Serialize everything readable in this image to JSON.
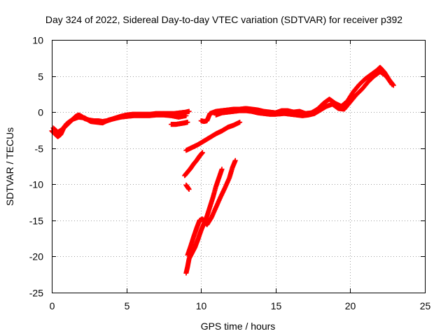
{
  "chart_data": {
    "type": "scatter",
    "title": "Day 324 of 2022, Sidereal Day-to-day VTEC variation (SDTVAR) for receiver p392",
    "xlabel": "GPS time / hours",
    "ylabel": "SDTVAR / TECUs",
    "xlim": [
      0,
      25
    ],
    "ylim": [
      -25,
      10
    ],
    "xticks": [
      0,
      5,
      10,
      15,
      20,
      25
    ],
    "yticks": [
      -25,
      -20,
      -15,
      -10,
      -5,
      0,
      5,
      10
    ],
    "grid": true,
    "legend": "none",
    "marker": "plus",
    "color": "#ff0000",
    "series": [
      {
        "values": [
          [
            0.0,
            -2.6
          ],
          [
            0.2,
            -3.0
          ],
          [
            0.4,
            -3.4
          ],
          [
            0.6,
            -3.1
          ],
          [
            0.8,
            -2.2
          ],
          [
            1.0,
            -1.8
          ],
          [
            1.2,
            -1.4
          ],
          [
            1.4,
            -1.0
          ],
          [
            1.6,
            -0.6
          ],
          [
            1.8,
            -0.4
          ],
          [
            2.0,
            -0.6
          ],
          [
            2.2,
            -0.9
          ],
          [
            2.5,
            -1.1
          ],
          [
            2.8,
            -1.2
          ],
          [
            3.1,
            -1.2
          ],
          [
            3.4,
            -1.3
          ],
          [
            3.7,
            -1.2
          ],
          [
            4.0,
            -1.0
          ],
          [
            4.3,
            -0.8
          ],
          [
            4.6,
            -0.6
          ],
          [
            5.0,
            -0.4
          ],
          [
            5.4,
            -0.3
          ],
          [
            5.8,
            -0.3
          ],
          [
            6.2,
            -0.3
          ],
          [
            6.6,
            -0.3
          ],
          [
            7.0,
            -0.2
          ],
          [
            7.4,
            -0.2
          ],
          [
            7.8,
            -0.2
          ],
          [
            8.2,
            -0.2
          ],
          [
            8.6,
            -0.1
          ],
          [
            9.0,
            0.0
          ],
          [
            9.2,
            0.1
          ],
          [
            10.0,
            -1.2
          ],
          [
            10.2,
            -1.3
          ],
          [
            10.4,
            -1.2
          ],
          [
            10.6,
            -0.2
          ],
          [
            11.0,
            0.1
          ],
          [
            11.4,
            0.2
          ],
          [
            11.8,
            0.3
          ],
          [
            12.2,
            0.4
          ],
          [
            12.6,
            0.4
          ],
          [
            13.0,
            0.5
          ],
          [
            13.4,
            0.4
          ],
          [
            13.8,
            0.3
          ],
          [
            14.2,
            0.1
          ],
          [
            14.6,
            0.0
          ],
          [
            15.0,
            -0.1
          ],
          [
            15.4,
            0.2
          ],
          [
            15.8,
            0.2
          ],
          [
            16.2,
            0.0
          ],
          [
            16.6,
            0.1
          ],
          [
            17.0,
            -0.2
          ],
          [
            17.4,
            -0.1
          ],
          [
            17.8,
            0.4
          ],
          [
            18.2,
            1.2
          ],
          [
            18.6,
            1.8
          ],
          [
            19.0,
            1.2
          ],
          [
            19.4,
            0.8
          ],
          [
            19.8,
            1.5
          ],
          [
            20.2,
            2.8
          ],
          [
            20.6,
            3.8
          ],
          [
            21.0,
            4.6
          ],
          [
            21.4,
            5.2
          ],
          [
            21.8,
            5.8
          ],
          [
            22.0,
            6.2
          ],
          [
            22.3,
            5.5
          ],
          [
            22.6,
            4.5
          ],
          [
            22.9,
            3.7
          ]
        ]
      },
      {
        "values": [
          [
            0.1,
            -2.2
          ],
          [
            0.4,
            -2.8
          ],
          [
            0.7,
            -2.4
          ],
          [
            1.0,
            -1.6
          ],
          [
            1.4,
            -1.0
          ],
          [
            1.8,
            -0.7
          ],
          [
            2.2,
            -0.8
          ],
          [
            2.6,
            -1.3
          ],
          [
            3.0,
            -1.4
          ],
          [
            3.4,
            -1.5
          ],
          [
            3.8,
            -1.1
          ],
          [
            4.2,
            -0.9
          ],
          [
            4.6,
            -0.7
          ],
          [
            5.0,
            -0.6
          ],
          [
            5.5,
            -0.5
          ],
          [
            6.0,
            -0.5
          ],
          [
            6.5,
            -0.5
          ],
          [
            7.0,
            -0.4
          ],
          [
            7.5,
            -0.4
          ],
          [
            8.0,
            -0.5
          ],
          [
            8.5,
            -0.7
          ],
          [
            9.0,
            -0.5
          ],
          [
            8.0,
            -1.7
          ],
          [
            8.3,
            -1.7
          ],
          [
            8.6,
            -1.6
          ],
          [
            8.9,
            -1.5
          ],
          [
            9.1,
            -1.4
          ],
          [
            11.0,
            -0.4
          ],
          [
            11.4,
            -0.1
          ],
          [
            11.8,
            0.0
          ],
          [
            12.2,
            0.1
          ],
          [
            12.6,
            0.2
          ],
          [
            13.0,
            0.2
          ],
          [
            13.4,
            0.1
          ],
          [
            13.8,
            -0.1
          ],
          [
            14.2,
            -0.2
          ],
          [
            14.6,
            -0.3
          ],
          [
            15.0,
            -0.3
          ],
          [
            15.6,
            -0.2
          ],
          [
            16.0,
            -0.3
          ],
          [
            16.4,
            -0.4
          ],
          [
            16.8,
            -0.5
          ],
          [
            17.2,
            -0.4
          ],
          [
            17.6,
            -0.2
          ],
          [
            18.0,
            0.3
          ],
          [
            18.4,
            0.8
          ],
          [
            18.8,
            1.1
          ],
          [
            19.2,
            0.5
          ],
          [
            19.6,
            0.4
          ],
          [
            20.0,
            1.4
          ],
          [
            20.4,
            2.4
          ],
          [
            20.8,
            3.2
          ],
          [
            21.2,
            4.2
          ],
          [
            21.6,
            5.0
          ],
          [
            22.0,
            5.6
          ],
          [
            22.4,
            5.0
          ],
          [
            22.8,
            3.8
          ]
        ]
      },
      {
        "values": [
          [
            9.0,
            -5.3
          ],
          [
            9.4,
            -4.9
          ],
          [
            9.8,
            -4.5
          ],
          [
            10.2,
            -4.0
          ],
          [
            10.6,
            -3.5
          ],
          [
            11.0,
            -3.0
          ],
          [
            11.4,
            -2.6
          ],
          [
            11.8,
            -2.1
          ],
          [
            12.2,
            -1.8
          ],
          [
            12.6,
            -1.4
          ]
        ]
      },
      {
        "values": [
          [
            8.9,
            -8.8
          ],
          [
            9.1,
            -8.3
          ],
          [
            9.3,
            -7.8
          ],
          [
            9.5,
            -7.2
          ],
          [
            9.7,
            -6.7
          ],
          [
            9.9,
            -6.1
          ],
          [
            10.1,
            -5.6
          ],
          [
            9.0,
            -10.1
          ],
          [
            9.2,
            -10.7
          ]
        ]
      },
      {
        "values": [
          [
            9.0,
            -22.3
          ],
          [
            9.1,
            -21.4
          ],
          [
            9.2,
            -20.3
          ],
          [
            9.4,
            -19.5
          ],
          [
            9.6,
            -18.7
          ],
          [
            9.8,
            -17.6
          ],
          [
            10.0,
            -16.4
          ],
          [
            10.2,
            -15.4
          ],
          [
            10.4,
            -14.4
          ],
          [
            10.6,
            -13.1
          ],
          [
            10.8,
            -11.8
          ],
          [
            11.0,
            -10.3
          ],
          [
            11.2,
            -9.1
          ],
          [
            11.4,
            -7.9
          ],
          [
            9.1,
            -19.8
          ],
          [
            9.3,
            -18.6
          ],
          [
            9.5,
            -17.3
          ],
          [
            9.7,
            -16.1
          ],
          [
            9.9,
            -15.0
          ],
          [
            10.1,
            -14.8
          ],
          [
            10.4,
            -15.6
          ],
          [
            10.7,
            -14.6
          ],
          [
            11.0,
            -13.2
          ],
          [
            11.3,
            -11.8
          ],
          [
            11.6,
            -10.5
          ],
          [
            11.9,
            -9.1
          ],
          [
            12.1,
            -7.7
          ],
          [
            12.3,
            -6.7
          ]
        ]
      }
    ]
  }
}
